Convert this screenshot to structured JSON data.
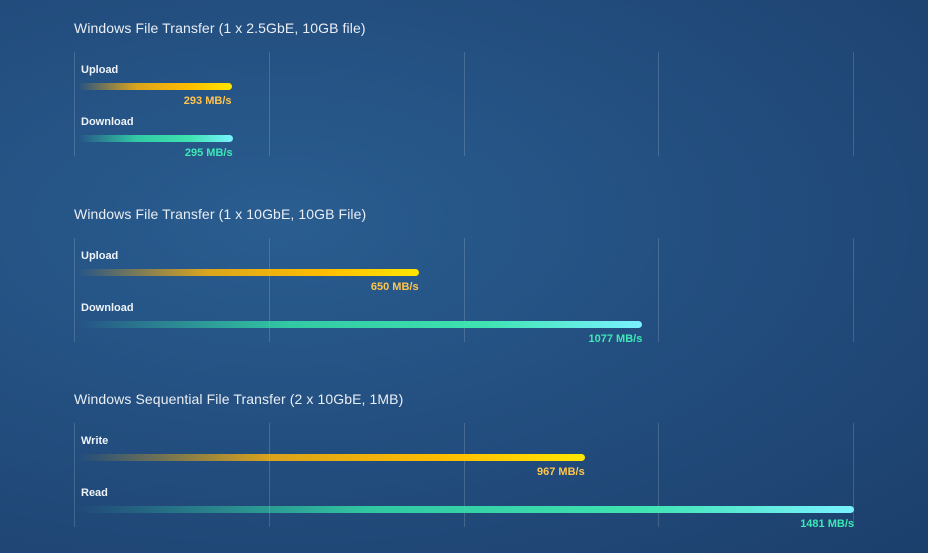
{
  "chart_data": [
    {
      "type": "bar",
      "orientation": "horizontal",
      "title": "Windows File Transfer (1 x 2.5GbE, 10GB file)",
      "categories": [
        "Upload",
        "Download"
      ],
      "values": [
        293,
        295
      ],
      "value_labels": [
        "293 MB/s",
        "295 MB/s"
      ],
      "unit": "MB/s",
      "xlim": [
        0,
        1481
      ],
      "grid": true,
      "colors": [
        "#ffc000",
        "#3fe3b0"
      ]
    },
    {
      "type": "bar",
      "orientation": "horizontal",
      "title": "Windows File Transfer (1 x 10GbE, 10GB File)",
      "categories": [
        "Upload",
        "Download"
      ],
      "values": [
        650,
        1077
      ],
      "value_labels": [
        "650 MB/s",
        "1077 MB/s"
      ],
      "unit": "MB/s",
      "xlim": [
        0,
        1481
      ],
      "grid": true,
      "colors": [
        "#ffc000",
        "#3fe3b0"
      ]
    },
    {
      "type": "bar",
      "orientation": "horizontal",
      "title": "Windows Sequential File Transfer (2 x 10GbE, 1MB)",
      "categories": [
        "Write",
        "Read"
      ],
      "values": [
        967,
        1481
      ],
      "value_labels": [
        "967 MB/s",
        "1481 MB/s"
      ],
      "unit": "MB/s",
      "xlim": [
        0,
        1481
      ],
      "grid": true,
      "colors": [
        "#ffc000",
        "#3fe3b0"
      ]
    }
  ]
}
